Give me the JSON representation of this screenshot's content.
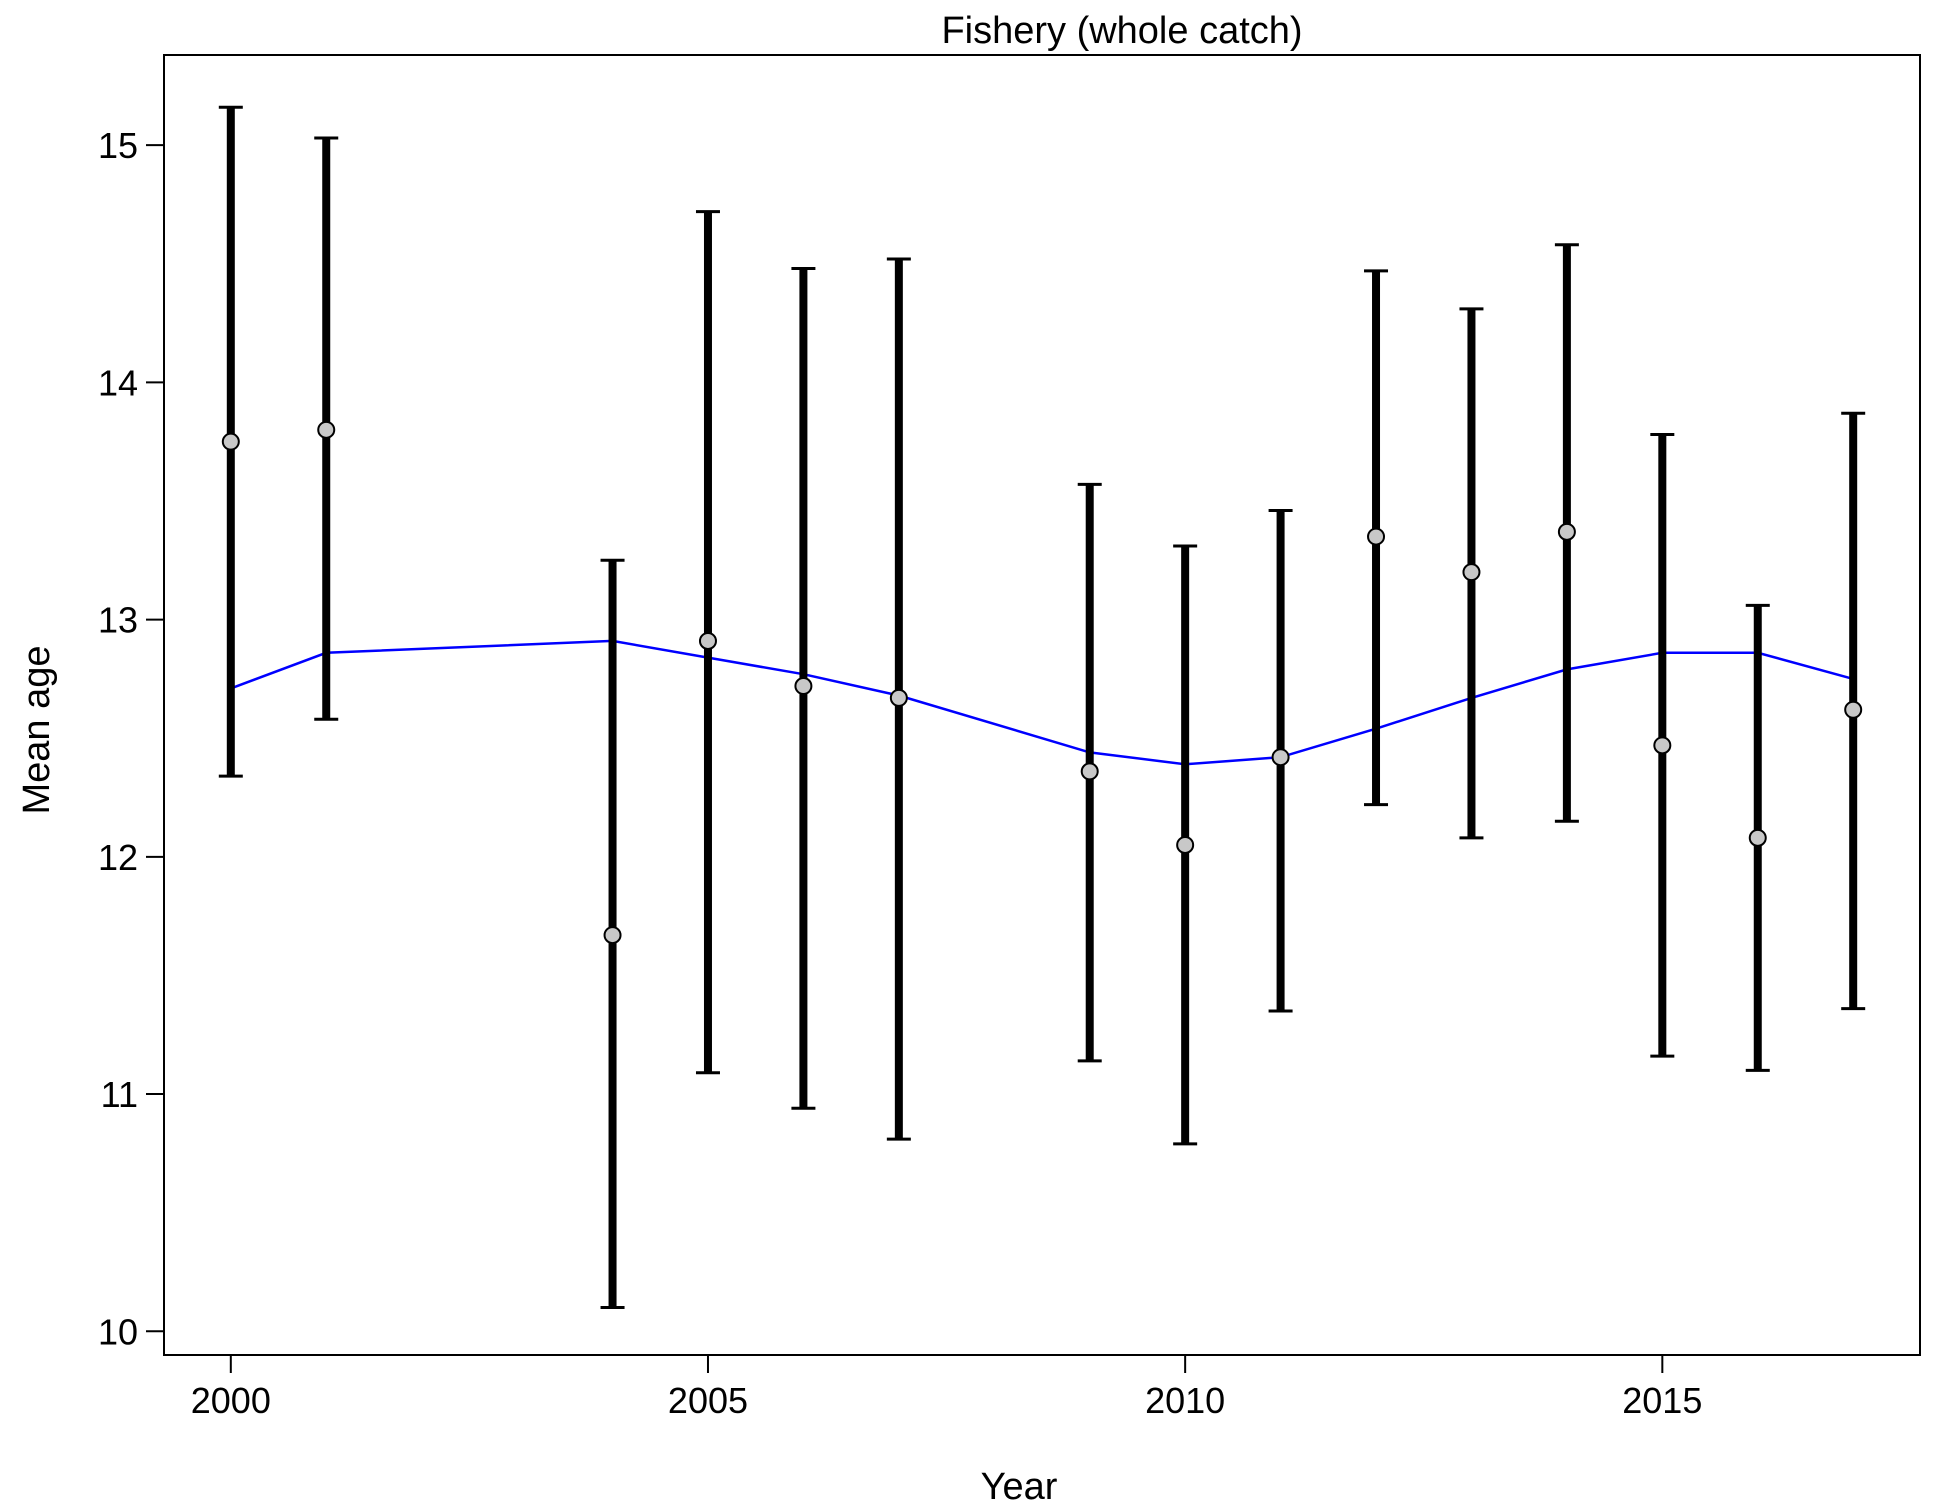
{
  "chart_data": {
    "type": "scatter",
    "title": "Fishery (whole catch)",
    "xlabel": "Year",
    "ylabel": "Mean age",
    "xlim": [
      1999.3,
      2017.7
    ],
    "ylim": [
      9.9,
      15.38
    ],
    "x_ticks": [
      2000,
      2005,
      2010,
      2015
    ],
    "y_ticks": [
      10,
      11,
      12,
      13,
      14,
      15
    ],
    "grid": false,
    "colors": {
      "observed_point": "#c8c8c8",
      "error_bar": "#000000",
      "fitted_line": "#0000ff"
    },
    "observed": [
      {
        "year": 2000,
        "mean": 13.75,
        "lower": 12.34,
        "upper": 15.16
      },
      {
        "year": 2001,
        "mean": 13.8,
        "lower": 12.58,
        "upper": 15.03
      },
      {
        "year": 2004,
        "mean": 11.67,
        "lower": 10.1,
        "upper": 13.25
      },
      {
        "year": 2005,
        "mean": 12.91,
        "lower": 11.09,
        "upper": 14.72
      },
      {
        "year": 2006,
        "mean": 12.72,
        "lower": 10.94,
        "upper": 14.48
      },
      {
        "year": 2007,
        "mean": 12.67,
        "lower": 10.81,
        "upper": 14.52
      },
      {
        "year": 2009,
        "mean": 12.36,
        "lower": 11.14,
        "upper": 13.57
      },
      {
        "year": 2010,
        "mean": 12.05,
        "lower": 10.79,
        "upper": 13.31
      },
      {
        "year": 2011,
        "mean": 12.42,
        "lower": 11.35,
        "upper": 13.46
      },
      {
        "year": 2012,
        "mean": 13.35,
        "lower": 12.22,
        "upper": 14.47
      },
      {
        "year": 2013,
        "mean": 13.2,
        "lower": 12.08,
        "upper": 14.31
      },
      {
        "year": 2014,
        "mean": 13.37,
        "lower": 12.15,
        "upper": 14.58
      },
      {
        "year": 2015,
        "mean": 12.47,
        "lower": 11.16,
        "upper": 13.78
      },
      {
        "year": 2016,
        "mean": 12.08,
        "lower": 11.1,
        "upper": 13.06
      },
      {
        "year": 2017,
        "mean": 12.62,
        "lower": 11.36,
        "upper": 13.87
      }
    ],
    "fitted": [
      {
        "year": 2000,
        "value": 12.71
      },
      {
        "year": 2001,
        "value": 12.86
      },
      {
        "year": 2004,
        "value": 12.91
      },
      {
        "year": 2005,
        "value": 12.84
      },
      {
        "year": 2006,
        "value": 12.77
      },
      {
        "year": 2007,
        "value": 12.68
      },
      {
        "year": 2009,
        "value": 12.44
      },
      {
        "year": 2010,
        "value": 12.39
      },
      {
        "year": 2011,
        "value": 12.42
      },
      {
        "year": 2012,
        "value": 12.54
      },
      {
        "year": 2013,
        "value": 12.67
      },
      {
        "year": 2014,
        "value": 12.79
      },
      {
        "year": 2015,
        "value": 12.86
      },
      {
        "year": 2016,
        "value": 12.86
      },
      {
        "year": 2017,
        "value": 12.75
      }
    ]
  }
}
